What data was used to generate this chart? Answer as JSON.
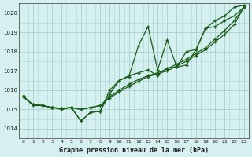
{
  "title": "Graphe pression niveau de la mer (hPa)",
  "bg_color": "#d6f0f0",
  "grid_color": "#aad4d4",
  "line_color": "#1a5c1a",
  "x_labels": [
    "0",
    "1",
    "2",
    "3",
    "4",
    "5",
    "6",
    "7",
    "8",
    "9",
    "10",
    "11",
    "12",
    "13",
    "14",
    "15",
    "16",
    "17",
    "18",
    "19",
    "20",
    "21",
    "22",
    "23"
  ],
  "ylim": [
    1013.5,
    1020.5
  ],
  "yticks": [
    1014,
    1015,
    1016,
    1017,
    1018,
    1019,
    1020
  ],
  "series": [
    {
      "x": [
        0,
        1,
        2,
        3,
        4,
        5,
        6,
        7,
        8,
        9,
        10,
        11,
        12,
        13,
        14,
        15,
        16,
        17,
        18,
        19,
        20,
        21,
        22,
        23
      ],
      "y": [
        1015.65,
        1015.25,
        1015.2,
        1015.1,
        1015.05,
        1015.1,
        1015.0,
        1015.1,
        1015.2,
        1015.6,
        1015.9,
        1016.2,
        1016.45,
        1016.7,
        1016.85,
        1017.0,
        1017.25,
        1017.5,
        1017.8,
        1018.1,
        1018.5,
        1018.9,
        1019.4,
        1020.3
      ]
    },
    {
      "x": [
        0,
        1,
        2,
        3,
        4,
        5,
        6,
        7,
        8,
        9,
        10,
        11,
        12,
        13,
        14,
        15,
        16,
        17,
        18,
        19,
        20,
        21,
        22,
        23
      ],
      "y": [
        1015.65,
        1015.25,
        1015.2,
        1015.1,
        1015.05,
        1015.1,
        1015.0,
        1015.1,
        1015.2,
        1015.65,
        1016.0,
        1016.3,
        1016.55,
        1016.75,
        1016.9,
        1017.1,
        1017.35,
        1017.6,
        1017.9,
        1018.2,
        1018.65,
        1019.1,
        1019.6,
        1020.3
      ]
    },
    {
      "x": [
        0,
        1,
        2,
        3,
        4,
        5,
        6,
        7,
        8,
        9,
        10,
        11,
        12,
        13,
        14,
        15,
        16,
        17,
        18,
        19,
        20,
        21,
        22,
        23
      ],
      "y": [
        1015.7,
        1015.2,
        1015.2,
        1015.1,
        1015.0,
        1015.1,
        1014.4,
        1014.85,
        1014.9,
        1015.8,
        1016.5,
        1016.7,
        1018.3,
        1019.3,
        1017.05,
        1018.6,
        1017.2,
        1017.3,
        1018.1,
        1019.2,
        1019.6,
        1019.85,
        1020.3,
        1020.4
      ]
    },
    {
      "x": [
        0,
        1,
        2,
        3,
        4,
        5,
        6,
        7,
        8,
        9,
        10,
        11,
        12,
        13,
        14,
        15,
        16,
        17,
        18,
        19,
        20,
        21,
        22,
        23
      ],
      "y": [
        1015.65,
        1015.25,
        1015.2,
        1015.1,
        1015.05,
        1015.1,
        1014.4,
        1014.85,
        1014.9,
        1016.0,
        1016.5,
        1016.75,
        1016.9,
        1017.05,
        1016.75,
        1017.15,
        1017.2,
        1018.0,
        1018.1,
        1019.2,
        1019.3,
        1019.6,
        1019.85,
        1020.3
      ]
    }
  ]
}
